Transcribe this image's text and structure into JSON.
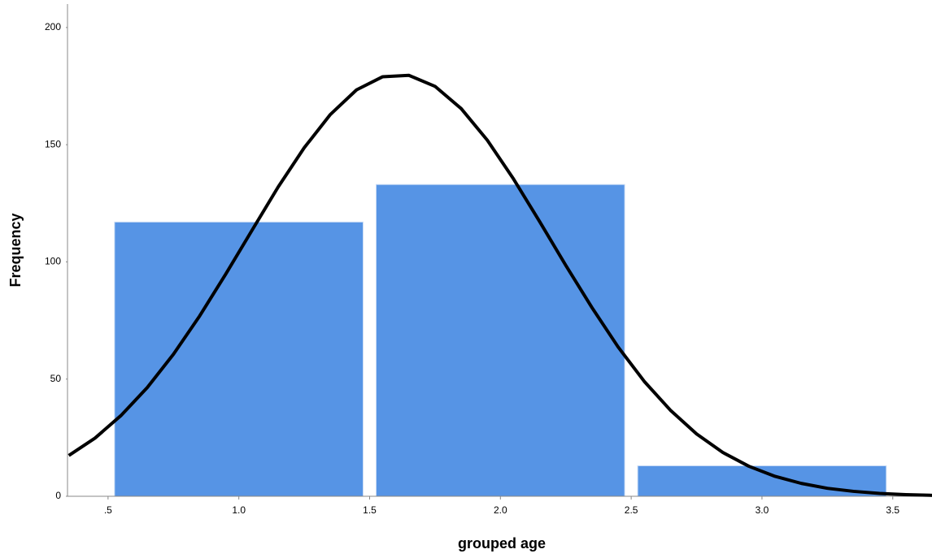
{
  "chart_data": {
    "type": "histogram",
    "x_label": "grouped age",
    "y_label": "Frequency",
    "bins": [
      0.5,
      1.5,
      2.5,
      3.5
    ],
    "values": [
      117,
      133,
      13
    ],
    "color": "#5694e5",
    "xlim": [
      0.345,
      3.65
    ],
    "ylim": [
      0,
      210
    ],
    "xticks": [
      {
        "value": 0.5,
        "label": ".5"
      },
      {
        "value": 1,
        "label": "1.0"
      },
      1.5,
      {
        "value": 2,
        "label": "2.0"
      },
      2.5,
      {
        "value": 3,
        "label": "3.0"
      },
      3.5
    ],
    "yticks": [
      0,
      50,
      100,
      150,
      200
    ],
    "grid": false,
    "curve": {
      "color": "#000000",
      "x": [
        0.35,
        0.45,
        0.55,
        0.65,
        0.75,
        0.85,
        0.95,
        1.05,
        1.15,
        1.25,
        1.35,
        1.45,
        1.55,
        1.65,
        1.75,
        1.85,
        1.95,
        2.05,
        2.15,
        2.25,
        2.35,
        2.45,
        2.55,
        2.65,
        2.75,
        2.85,
        2.95,
        3.05,
        3.15,
        3.25,
        3.35,
        3.45,
        3.55,
        3.65
      ],
      "values": [
        17.4,
        24.8,
        34.5,
        46.4,
        60.6,
        76.9,
        94.8,
        113.4,
        131.9,
        148.7,
        162.9,
        173.4,
        179.0,
        179.6,
        174.9,
        165.4,
        151.9,
        135.4,
        117.2,
        98.5,
        80.5,
        63.7,
        49.0,
        36.7,
        26.6,
        18.7,
        12.8,
        8.5,
        5.5,
        3.4,
        2.1,
        1.2,
        0.7,
        0.4
      ]
    }
  }
}
